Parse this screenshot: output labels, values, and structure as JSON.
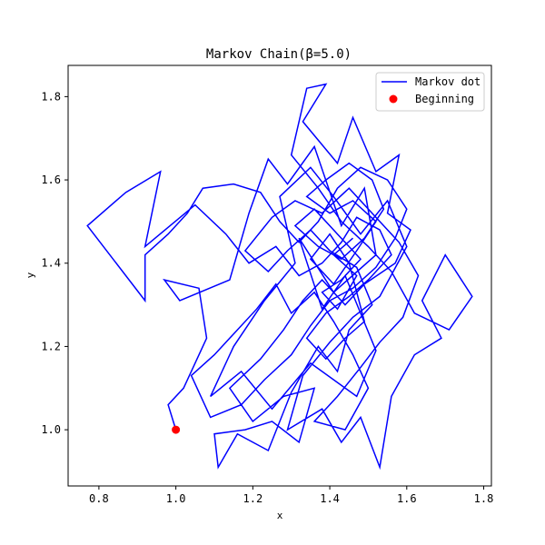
{
  "chart_data": {
    "type": "line",
    "title": "Markov Chain(β=5.0)",
    "xlabel": "x",
    "ylabel": "y",
    "xlim": [
      0.72,
      1.82
    ],
    "ylim": [
      0.865,
      1.875
    ],
    "xticks": [
      0.8,
      1.0,
      1.2,
      1.4,
      1.6,
      1.8
    ],
    "yticks": [
      1.0,
      1.2,
      1.4,
      1.6,
      1.8
    ],
    "xtick_labels": [
      "0.8",
      "1.0",
      "1.2",
      "1.4",
      "1.6",
      "1.8"
    ],
    "ytick_labels": [
      "1.0",
      "1.2",
      "1.4",
      "1.6",
      "1.8"
    ],
    "grid": false,
    "legend": {
      "position": "top-right",
      "entries": [
        {
          "label": "Markov dot",
          "kind": "line",
          "color": "#0000ff"
        },
        {
          "label": "Beginning",
          "kind": "marker",
          "color": "#ff0000"
        }
      ]
    },
    "start_point": {
      "name": "Beginning",
      "x": 1.0,
      "y": 1.0,
      "color": "#ff0000"
    },
    "series": [
      {
        "name": "Markov dot",
        "color": "#0000ff",
        "points": [
          [
            1.0,
            1.0
          ],
          [
            0.98,
            1.06
          ],
          [
            1.02,
            1.1
          ],
          [
            1.08,
            1.22
          ],
          [
            1.06,
            1.34
          ],
          [
            0.97,
            1.36
          ],
          [
            1.01,
            1.31
          ],
          [
            1.14,
            1.36
          ],
          [
            1.19,
            1.52
          ],
          [
            1.24,
            1.65
          ],
          [
            1.29,
            1.59
          ],
          [
            1.36,
            1.68
          ],
          [
            1.43,
            1.49
          ],
          [
            1.49,
            1.58
          ],
          [
            1.52,
            1.42
          ],
          [
            1.41,
            1.33
          ],
          [
            1.32,
            1.46
          ],
          [
            1.38,
            1.29
          ],
          [
            1.44,
            1.37
          ],
          [
            1.52,
            1.19
          ],
          [
            1.47,
            1.08
          ],
          [
            1.35,
            1.16
          ],
          [
            1.25,
            1.05
          ],
          [
            1.17,
            1.14
          ],
          [
            1.09,
            1.08
          ],
          [
            1.15,
            1.2
          ],
          [
            1.23,
            1.31
          ],
          [
            1.31,
            1.4
          ],
          [
            1.27,
            1.56
          ],
          [
            1.35,
            1.63
          ],
          [
            1.41,
            1.56
          ],
          [
            1.48,
            1.47
          ],
          [
            1.55,
            1.55
          ],
          [
            1.6,
            1.44
          ],
          [
            1.53,
            1.32
          ],
          [
            1.46,
            1.27
          ],
          [
            1.4,
            1.21
          ],
          [
            1.33,
            1.13
          ],
          [
            1.29,
            1.0
          ],
          [
            1.38,
            1.05
          ],
          [
            1.43,
            0.97
          ],
          [
            1.48,
            1.03
          ],
          [
            1.53,
            0.91
          ],
          [
            1.56,
            1.08
          ],
          [
            1.62,
            1.18
          ],
          [
            1.69,
            1.22
          ],
          [
            1.64,
            1.31
          ],
          [
            1.7,
            1.42
          ],
          [
            1.77,
            1.32
          ],
          [
            1.71,
            1.24
          ],
          [
            1.62,
            1.28
          ],
          [
            1.56,
            1.38
          ],
          [
            1.5,
            1.44
          ],
          [
            1.43,
            1.5
          ],
          [
            1.37,
            1.58
          ],
          [
            1.3,
            1.66
          ],
          [
            1.34,
            1.82
          ],
          [
            1.39,
            1.83
          ],
          [
            1.33,
            1.74
          ],
          [
            1.42,
            1.64
          ],
          [
            1.46,
            1.75
          ],
          [
            1.52,
            1.62
          ],
          [
            1.58,
            1.66
          ],
          [
            1.55,
            1.52
          ],
          [
            1.61,
            1.48
          ],
          [
            1.57,
            1.4
          ],
          [
            1.49,
            1.35
          ],
          [
            1.44,
            1.3
          ],
          [
            1.38,
            1.36
          ],
          [
            1.33,
            1.31
          ],
          [
            1.28,
            1.24
          ],
          [
            1.22,
            1.17
          ],
          [
            1.14,
            1.1
          ],
          [
            1.2,
            1.02
          ],
          [
            1.28,
            1.08
          ],
          [
            1.36,
            1.1
          ],
          [
            1.32,
            0.97
          ],
          [
            1.25,
            1.02
          ],
          [
            1.18,
            1.0
          ],
          [
            1.1,
            0.99
          ],
          [
            1.11,
            0.91
          ],
          [
            1.16,
            0.99
          ],
          [
            1.24,
            0.95
          ],
          [
            1.3,
            1.09
          ],
          [
            1.37,
            1.2
          ],
          [
            1.42,
            1.14
          ],
          [
            1.45,
            1.24
          ],
          [
            1.51,
            1.3
          ],
          [
            1.47,
            1.39
          ],
          [
            1.4,
            1.43
          ],
          [
            1.35,
            1.48
          ],
          [
            1.29,
            1.43
          ],
          [
            1.24,
            1.38
          ],
          [
            1.18,
            1.43
          ],
          [
            1.25,
            1.51
          ],
          [
            1.31,
            1.55
          ],
          [
            1.38,
            1.52
          ],
          [
            1.45,
            1.58
          ],
          [
            1.51,
            1.52
          ],
          [
            1.58,
            1.45
          ],
          [
            1.63,
            1.37
          ],
          [
            1.59,
            1.27
          ],
          [
            1.53,
            1.21
          ],
          [
            1.48,
            1.15
          ],
          [
            1.42,
            1.08
          ],
          [
            1.36,
            1.02
          ],
          [
            1.44,
            1.0
          ],
          [
            1.5,
            1.1
          ],
          [
            1.46,
            1.18
          ],
          [
            1.41,
            1.26
          ],
          [
            1.36,
            1.33
          ],
          [
            1.3,
            1.28
          ],
          [
            1.26,
            1.35
          ],
          [
            1.21,
            1.29
          ],
          [
            1.16,
            1.24
          ],
          [
            1.1,
            1.18
          ],
          [
            1.04,
            1.13
          ],
          [
            1.09,
            1.03
          ],
          [
            1.17,
            1.06
          ],
          [
            1.23,
            1.12
          ],
          [
            1.3,
            1.18
          ],
          [
            1.35,
            1.25
          ],
          [
            1.4,
            1.31
          ],
          [
            1.46,
            1.34
          ],
          [
            1.52,
            1.39
          ],
          [
            1.57,
            1.46
          ],
          [
            1.6,
            1.53
          ],
          [
            1.55,
            1.6
          ],
          [
            1.48,
            1.63
          ],
          [
            1.42,
            1.58
          ],
          [
            1.37,
            1.5
          ],
          [
            1.32,
            1.45
          ],
          [
            1.27,
            1.5
          ],
          [
            1.22,
            1.57
          ],
          [
            1.15,
            1.59
          ],
          [
            1.07,
            1.58
          ],
          [
            1.03,
            1.52
          ],
          [
            0.98,
            1.47
          ],
          [
            0.92,
            1.42
          ],
          [
            0.92,
            1.31
          ],
          [
            0.77,
            1.49
          ],
          [
            0.87,
            1.57
          ],
          [
            0.96,
            1.62
          ],
          [
            0.92,
            1.44
          ],
          [
            1.05,
            1.54
          ],
          [
            1.13,
            1.47
          ],
          [
            1.19,
            1.4
          ],
          [
            1.26,
            1.44
          ],
          [
            1.32,
            1.37
          ],
          [
            1.38,
            1.4
          ],
          [
            1.43,
            1.45
          ],
          [
            1.47,
            1.51
          ],
          [
            1.53,
            1.48
          ],
          [
            1.56,
            1.42
          ],
          [
            1.5,
            1.36
          ],
          [
            1.45,
            1.32
          ],
          [
            1.39,
            1.28
          ],
          [
            1.34,
            1.22
          ],
          [
            1.39,
            1.17
          ],
          [
            1.44,
            1.22
          ],
          [
            1.49,
            1.26
          ],
          [
            1.45,
            1.4
          ],
          [
            1.4,
            1.47
          ],
          [
            1.35,
            1.41
          ],
          [
            1.41,
            1.35
          ],
          [
            1.47,
            1.43
          ],
          [
            1.52,
            1.5
          ],
          [
            1.46,
            1.55
          ],
          [
            1.4,
            1.52
          ],
          [
            1.34,
            1.56
          ],
          [
            1.39,
            1.6
          ],
          [
            1.45,
            1.64
          ],
          [
            1.51,
            1.6
          ],
          [
            1.54,
            1.53
          ],
          [
            1.49,
            1.46
          ],
          [
            1.43,
            1.41
          ],
          [
            1.37,
            1.44
          ],
          [
            1.31,
            1.49
          ],
          [
            1.36,
            1.53
          ],
          [
            1.42,
            1.47
          ],
          [
            1.48,
            1.41
          ],
          [
            1.43,
            1.36
          ],
          [
            1.38,
            1.33
          ],
          [
            1.42,
            1.29
          ],
          [
            1.47,
            1.37
          ],
          [
            1.41,
            1.42
          ],
          [
            1.46,
            1.46
          ]
        ]
      }
    ]
  }
}
